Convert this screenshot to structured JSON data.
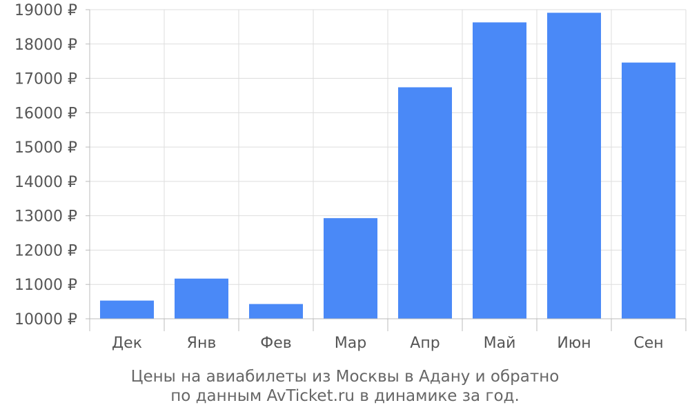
{
  "chart_data": {
    "type": "bar",
    "categories": [
      "Дек",
      "Янв",
      "Фев",
      "Мар",
      "Апр",
      "Май",
      "Июн",
      "Сен"
    ],
    "values": [
      10530,
      11170,
      10430,
      12930,
      16740,
      18630,
      18910,
      17460
    ],
    "ylim": [
      10000,
      19000
    ],
    "ytick_values": [
      10000,
      11000,
      12000,
      13000,
      14000,
      15000,
      16000,
      17000,
      18000,
      19000
    ],
    "ytick_labels": [
      "10000 ₽",
      "11000 ₽",
      "12000 ₽",
      "13000 ₽",
      "14000 ₽",
      "15000 ₽",
      "16000 ₽",
      "17000 ₽",
      "18000 ₽",
      "19000 ₽"
    ],
    "grid": true,
    "bar_color": "#4a89f7",
    "grid_color": "#dddddd",
    "axis_color": "#bbbbbb"
  },
  "caption": {
    "line1": "Цены на авиабилеты из Москвы в Адану и обратно",
    "line2": "по данным AvTicket.ru в динамике за год."
  }
}
